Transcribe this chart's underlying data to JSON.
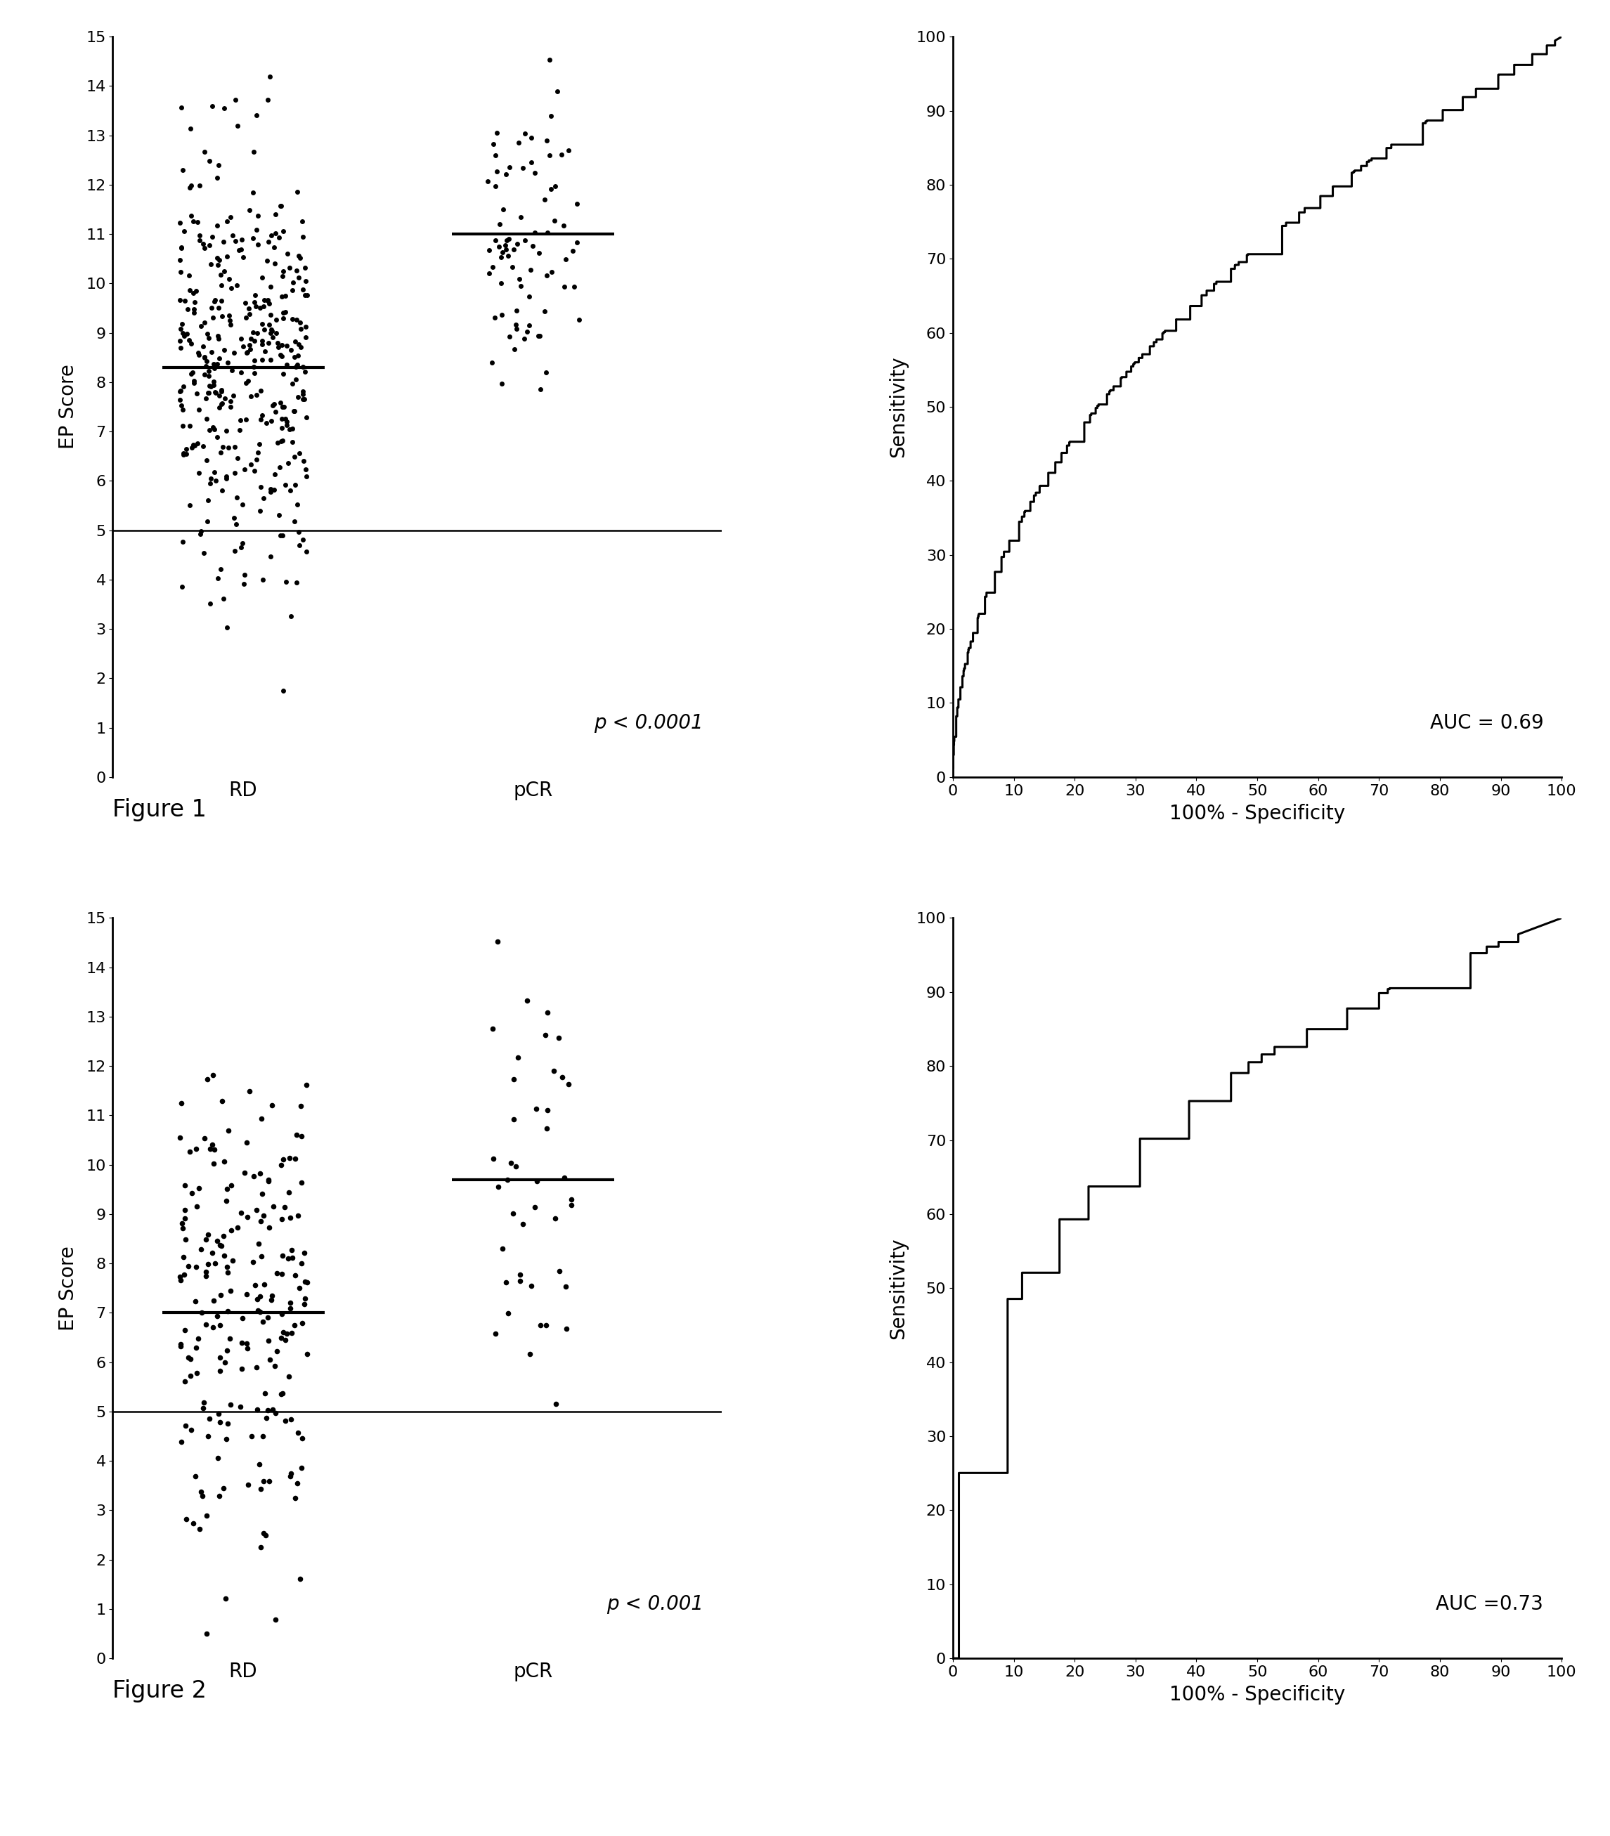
{
  "fig1_rd_mean": 8.3,
  "fig1_pcr_mean": 11.0,
  "fig1_threshold": 5.0,
  "fig1_pval": "p < 0.0001",
  "fig1_auc": "AUC = 0.69",
  "fig2_rd_mean": 7.0,
  "fig2_pcr_mean": 9.7,
  "fig2_threshold": 5.0,
  "fig2_pval": "p < 0.001",
  "fig2_auc": "AUC =0.73",
  "dot_color": "#000000",
  "line_color": "#000000",
  "background_color": "#ffffff",
  "fig1_label": "Figure 1",
  "fig2_label": "Figure 2",
  "ylabel_scatter": "EP Score",
  "xlabel_roc": "100% - Specificity",
  "ylabel_roc": "Sensitivity",
  "rd_label": "RD",
  "pcr_label": "pCR",
  "ylim_scatter": [
    0,
    15
  ],
  "yticks_scatter": [
    0,
    1,
    2,
    3,
    4,
    5,
    6,
    7,
    8,
    9,
    10,
    11,
    12,
    13,
    14,
    15
  ],
  "xlim_roc": [
    0,
    100
  ],
  "ylim_roc": [
    0,
    100
  ],
  "xticks_roc": [
    0,
    10,
    20,
    30,
    40,
    50,
    60,
    70,
    80,
    90,
    100
  ],
  "yticks_roc": [
    0,
    10,
    20,
    30,
    40,
    50,
    60,
    70,
    80,
    90,
    100
  ]
}
